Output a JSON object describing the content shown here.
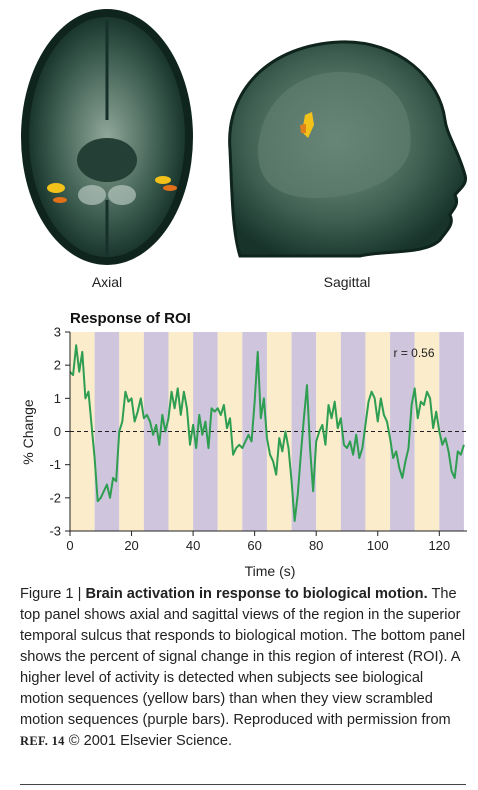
{
  "images": [
    {
      "label": "Axial"
    },
    {
      "label": "Sagittal"
    }
  ],
  "chart_data": {
    "type": "line",
    "title": "Response of ROI",
    "x_label": "Time (s)",
    "y_label": "% Change",
    "annotation": "r = 0.56",
    "xlim": [
      0,
      129
    ],
    "ylim": [
      -3,
      3
    ],
    "xticks": [
      0,
      20,
      40,
      60,
      80,
      100,
      120
    ],
    "yticks": [
      -3,
      -2,
      -1,
      0,
      1,
      2,
      3
    ],
    "reference_line": 0,
    "blocks": [
      {
        "x0": 0,
        "x1": 8,
        "color": "#fbeccb"
      },
      {
        "x0": 8,
        "x1": 16,
        "color": "#cfc6dd"
      },
      {
        "x0": 16,
        "x1": 24,
        "color": "#fbeccb"
      },
      {
        "x0": 24,
        "x1": 32,
        "color": "#cfc6dd"
      },
      {
        "x0": 32,
        "x1": 40,
        "color": "#fbeccb"
      },
      {
        "x0": 40,
        "x1": 48,
        "color": "#cfc6dd"
      },
      {
        "x0": 48,
        "x1": 56,
        "color": "#fbeccb"
      },
      {
        "x0": 56,
        "x1": 64,
        "color": "#cfc6dd"
      },
      {
        "x0": 64,
        "x1": 72,
        "color": "#fbeccb"
      },
      {
        "x0": 72,
        "x1": 80,
        "color": "#cfc6dd"
      },
      {
        "x0": 80,
        "x1": 88,
        "color": "#fbeccb"
      },
      {
        "x0": 88,
        "x1": 96,
        "color": "#cfc6dd"
      },
      {
        "x0": 96,
        "x1": 104,
        "color": "#fbeccb"
      },
      {
        "x0": 104,
        "x1": 112,
        "color": "#cfc6dd"
      },
      {
        "x0": 112,
        "x1": 120,
        "color": "#fbeccb"
      },
      {
        "x0": 120,
        "x1": 128,
        "color": "#cfc6dd"
      }
    ],
    "x": [
      0,
      1,
      2,
      3,
      4,
      5,
      6,
      7,
      8,
      9,
      10,
      11,
      12,
      13,
      14,
      15,
      16,
      17,
      18,
      19,
      20,
      21,
      22,
      23,
      24,
      25,
      26,
      27,
      28,
      29,
      30,
      31,
      32,
      33,
      34,
      35,
      36,
      37,
      38,
      39,
      40,
      41,
      42,
      43,
      44,
      45,
      46,
      47,
      48,
      49,
      50,
      51,
      52,
      53,
      54,
      55,
      56,
      57,
      58,
      59,
      60,
      61,
      62,
      63,
      64,
      65,
      66,
      67,
      68,
      69,
      70,
      71,
      72,
      73,
      74,
      75,
      76,
      77,
      78,
      79,
      80,
      81,
      82,
      83,
      84,
      85,
      86,
      87,
      88,
      89,
      90,
      91,
      92,
      93,
      94,
      95,
      96,
      97,
      98,
      99,
      100,
      101,
      102,
      103,
      104,
      105,
      106,
      107,
      108,
      109,
      110,
      111,
      112,
      113,
      114,
      115,
      116,
      117,
      118,
      119,
      120,
      121,
      122,
      123,
      124,
      125,
      126,
      127,
      128
    ],
    "series": [
      {
        "color": "#2e9e50",
        "values": [
          1.8,
          1.7,
          2.6,
          1.8,
          2.4,
          1.0,
          1.2,
          0.2,
          -0.8,
          -2.1,
          -2.0,
          -1.8,
          -1.6,
          -2.0,
          -1.4,
          -1.5,
          0.0,
          0.3,
          1.2,
          0.9,
          1.0,
          0.3,
          0.6,
          1.0,
          0.4,
          0.5,
          0.3,
          -0.1,
          0.2,
          -0.4,
          0.5,
          0.0,
          0.4,
          1.2,
          0.7,
          1.3,
          0.5,
          1.2,
          0.7,
          -0.4,
          0.2,
          -0.5,
          0.5,
          -0.1,
          0.3,
          -0.5,
          0.7,
          0.6,
          0.7,
          0.5,
          0.8,
          0.1,
          0.4,
          -0.7,
          -0.5,
          -0.4,
          -0.5,
          -0.3,
          -0.1,
          -0.3,
          0.9,
          2.4,
          0.4,
          1.0,
          -0.2,
          -0.7,
          -0.9,
          -1.3,
          -0.2,
          -0.6,
          0.0,
          -0.5,
          -1.5,
          -2.7,
          -1.9,
          -0.7,
          0.4,
          1.4,
          -0.5,
          -1.8,
          -0.3,
          0.0,
          0.2,
          -0.4,
          0.8,
          0.4,
          0.9,
          0.1,
          0.4,
          -0.4,
          -0.5,
          -0.3,
          -0.7,
          -0.1,
          -0.8,
          -0.5,
          0.2,
          0.9,
          1.2,
          1.0,
          0.3,
          1.0,
          0.5,
          0.3,
          -0.2,
          -0.8,
          -0.6,
          -1.1,
          -1.4,
          -0.9,
          -0.5,
          0.8,
          1.3,
          0.4,
          0.9,
          0.8,
          1.2,
          1.0,
          0.1,
          0.6,
          0.0,
          -0.4,
          -0.2,
          -0.6,
          -1.2,
          -1.4,
          -0.6,
          -0.7,
          -0.4
        ]
      }
    ]
  },
  "caption": {
    "label": "Figure 1 |",
    "title": "Brain activation in response to biological motion.",
    "text": "The top panel shows axial and sagittal views of the region in the superior temporal sulcus that responds to biological motion. The bottom panel shows the percent of signal change in this region of interest (ROI). A higher level of activity is detected when subjects see biological motion sequences (yellow bars) than when they view scrambled motion sequences (purple bars). Reproduced with permission from",
    "ref": "REF. 14",
    "credit": "© 2001 Elsevier Science."
  }
}
